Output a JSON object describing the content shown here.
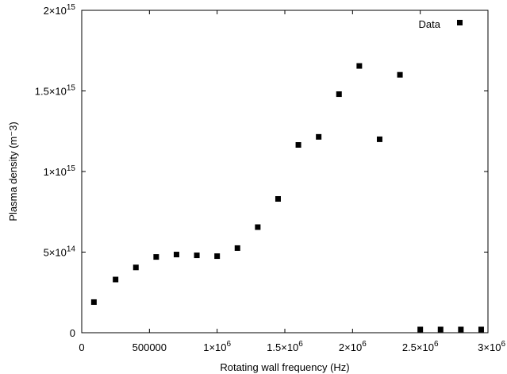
{
  "chart_data": {
    "type": "scatter",
    "xlabel": "Rotating wall frequency (Hz)",
    "ylabel": "Plasma density (m⁻3)",
    "xlim": [
      0,
      3000000
    ],
    "ylim": [
      0,
      2000000000000000
    ],
    "grid": false,
    "legend_position": "top-right",
    "x_ticks": [
      {
        "value": 0,
        "label": "0"
      },
      {
        "value": 500000,
        "label": "500000"
      },
      {
        "value": 1000000,
        "label": "1×10",
        "exp": "6"
      },
      {
        "value": 1500000,
        "label": "1.5×10",
        "exp": "6"
      },
      {
        "value": 2000000,
        "label": "2×10",
        "exp": "6"
      },
      {
        "value": 2500000,
        "label": "2.5×10",
        "exp": "6"
      },
      {
        "value": 3000000,
        "label": "3×10",
        "exp": "6"
      }
    ],
    "y_ticks": [
      {
        "value": 0,
        "label": "0"
      },
      {
        "value": 500000000000000,
        "label": "5×10",
        "exp": "14"
      },
      {
        "value": 1000000000000000,
        "label": "1×10",
        "exp": "15"
      },
      {
        "value": 1500000000000000,
        "label": "1.5×10",
        "exp": "15"
      },
      {
        "value": 2000000000000000,
        "label": "2×10",
        "exp": "15"
      }
    ],
    "series": [
      {
        "name": "Data",
        "color": "#000000",
        "marker": "square",
        "x": [
          90000,
          250000,
          400000,
          550000,
          700000,
          850000,
          1000000,
          1150000,
          1300000,
          1450000,
          1600000,
          1750000,
          1900000,
          2050000,
          2200000,
          2350000,
          2500000,
          2650000,
          2800000,
          2950000
        ],
        "y": [
          190000000000000,
          330000000000000,
          405000000000000,
          470000000000000,
          485000000000000,
          480000000000000,
          475000000000000,
          525000000000000,
          655000000000000,
          830000000000000,
          1165000000000000,
          1215000000000000,
          1480000000000000,
          1655000000000000,
          1200000000000000,
          1600000000000000,
          20000000000000,
          20000000000000,
          20000000000000,
          20000000000000
        ]
      }
    ]
  }
}
